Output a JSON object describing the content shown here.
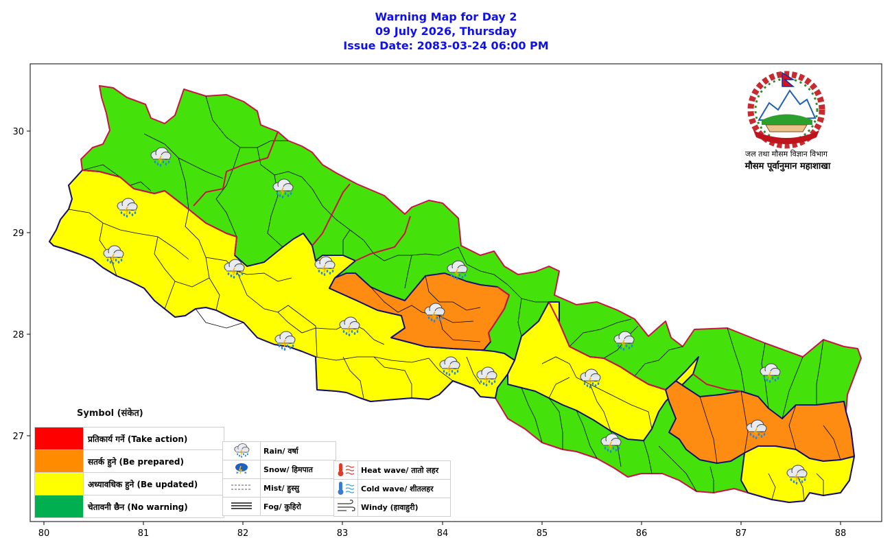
{
  "header": {
    "line1": "Warning Map for Day 2",
    "line2": "09 July 2026, Thursday",
    "line3": "Issue Date: 2083-03-24 06:00 PM"
  },
  "agency": {
    "line1": "जल तथा मौसम विज्ञान विभाग",
    "line2": "मौसम पूर्वानुमान महाशाखा"
  },
  "axes": {
    "x_ticks": [
      "80",
      "81",
      "82",
      "83",
      "84",
      "85",
      "86",
      "87",
      "88"
    ],
    "y_ticks": [
      "30",
      "29",
      "28",
      "27"
    ]
  },
  "legend": {
    "title": "Symbol (संकेत)",
    "severity": [
      {
        "label": "प्रतिकार्य गर्ने (Take action)",
        "color": "#ff0000"
      },
      {
        "label": "सतर्क हुने (Be prepared)",
        "color": "#ff8c00"
      },
      {
        "label": "अध्यावधिक हुने (Be updated)",
        "color": "#ffff00"
      },
      {
        "label": "चेतावनी छैन (No warning)",
        "color": "#00b050"
      }
    ],
    "weather": [
      {
        "label": "Rain/ वर्षा",
        "icon": "rain-icon"
      },
      {
        "label": "Snow/ हिमपात",
        "icon": "snow-icon"
      },
      {
        "label": "Mist/ हुस्सु",
        "icon": "mist-icon"
      },
      {
        "label": "Fog/ कुहिरो",
        "icon": "fog-icon"
      }
    ],
    "temperature": [
      {
        "label": "Heat wave/ तातो लहर",
        "icon": "heat-wave-icon"
      },
      {
        "label": "Cold wave/ शीतलहर",
        "icon": "cold-wave-icon"
      },
      {
        "label": "Windy (हावाहुरी)",
        "icon": "windy-icon"
      }
    ]
  },
  "map_colors": {
    "no_warning_fill": "#44e20a",
    "be_updated_fill": "#ffff00",
    "be_prepared_fill": "#ff8c12",
    "province_border": "#cc1144",
    "district_border": "#000000",
    "region_border": "#101070"
  }
}
